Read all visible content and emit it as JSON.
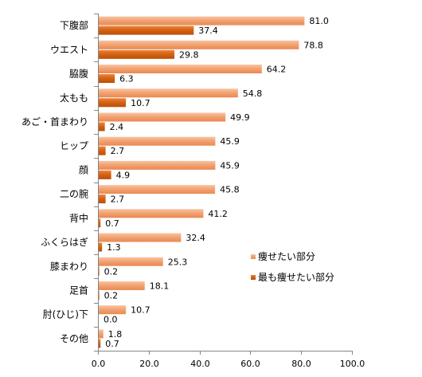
{
  "chart_data": {
    "type": "bar",
    "orientation": "horizontal",
    "title": "",
    "xlabel": "",
    "ylabel": "",
    "xlim": [
      0,
      100
    ],
    "ticks": [
      "0.0",
      "20.0",
      "40.0",
      "60.0",
      "80.0",
      "100.0"
    ],
    "grid": false,
    "legend_position": "right",
    "categories": [
      "下腹部",
      "ウエスト",
      "脇腹",
      "太もも",
      "あご・首まわり",
      "ヒップ",
      "顔",
      "二の腕",
      "背中",
      "ふくらはぎ",
      "膝まわり",
      "足首",
      "肘(ひじ)下",
      "その他"
    ],
    "series": [
      {
        "name": "痩せたい部分",
        "color": "#F2A070",
        "values": [
          81.0,
          78.8,
          64.2,
          54.8,
          49.9,
          45.9,
          45.9,
          45.8,
          41.2,
          32.4,
          25.3,
          18.1,
          10.7,
          1.8
        ],
        "labels": [
          "81.0",
          "78.8",
          "64.2",
          "54.8",
          "49.9",
          "45.9",
          "45.9",
          "45.8",
          "41.2",
          "32.4",
          "25.3",
          "18.1",
          "10.7",
          "1.8"
        ]
      },
      {
        "name": "最も痩せたい部分",
        "color": "#D5600F",
        "values": [
          37.4,
          29.8,
          6.3,
          10.7,
          2.4,
          2.7,
          4.9,
          2.7,
          0.7,
          1.3,
          0.2,
          0.2,
          0.0,
          0.7
        ],
        "labels": [
          "37.4",
          "29.8",
          "6.3",
          "10.7",
          "2.4",
          "2.7",
          "4.9",
          "2.7",
          "0.7",
          "1.3",
          "0.2",
          "0.2",
          "0.0",
          "0.7"
        ]
      }
    ]
  }
}
